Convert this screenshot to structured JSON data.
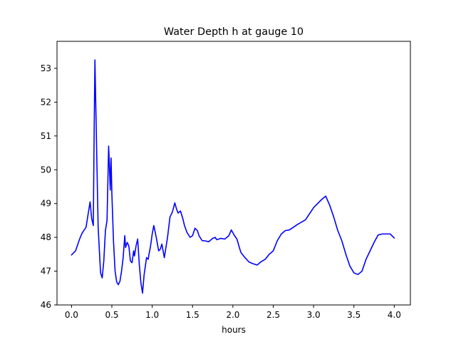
{
  "chart_data": {
    "type": "line",
    "title": "Water Depth h at gauge 10",
    "xlabel": "hours",
    "ylabel": "",
    "xlim": [
      -0.18,
      4.2
    ],
    "ylim": [
      46.0,
      53.8
    ],
    "xticks": [
      0.0,
      0.5,
      1.0,
      1.5,
      2.0,
      2.5,
      3.0,
      3.5,
      4.0
    ],
    "xtick_labels": [
      "0.0",
      "0.5",
      "1.0",
      "1.5",
      "2.0",
      "2.5",
      "3.0",
      "3.5",
      "4.0"
    ],
    "yticks": [
      46,
      47,
      48,
      49,
      50,
      51,
      52,
      53
    ],
    "ytick_labels": [
      "46",
      "47",
      "48",
      "49",
      "50",
      "51",
      "52",
      "53"
    ],
    "grid": false,
    "legend": "none",
    "series": [
      {
        "color": "#0000ff",
        "x": [
          0.0,
          0.05,
          0.1,
          0.13,
          0.18,
          0.21,
          0.23,
          0.25,
          0.27,
          0.28,
          0.29,
          0.3,
          0.33,
          0.36,
          0.38,
          0.4,
          0.42,
          0.44,
          0.46,
          0.47,
          0.48,
          0.49,
          0.5,
          0.52,
          0.54,
          0.56,
          0.58,
          0.6,
          0.62,
          0.64,
          0.66,
          0.67,
          0.69,
          0.71,
          0.73,
          0.75,
          0.77,
          0.78,
          0.8,
          0.82,
          0.84,
          0.86,
          0.88,
          0.9,
          0.93,
          0.95,
          0.96,
          0.98,
          1.0,
          1.02,
          1.05,
          1.08,
          1.1,
          1.12,
          1.15,
          1.17,
          1.19,
          1.2,
          1.22,
          1.25,
          1.28,
          1.3,
          1.32,
          1.35,
          1.38,
          1.4,
          1.43,
          1.47,
          1.5,
          1.53,
          1.56,
          1.58,
          1.62,
          1.65,
          1.7,
          1.75,
          1.78,
          1.8,
          1.85,
          1.9,
          1.95,
          1.98,
          2.02,
          2.05,
          2.08,
          2.1,
          2.15,
          2.2,
          2.25,
          2.3,
          2.35,
          2.4,
          2.45,
          2.5,
          2.55,
          2.6,
          2.65,
          2.7,
          2.75,
          2.8,
          2.85,
          2.9,
          2.95,
          3.0,
          3.05,
          3.1,
          3.15,
          3.2,
          3.25,
          3.3,
          3.35,
          3.4,
          3.45,
          3.5,
          3.55,
          3.6,
          3.65,
          3.7,
          3.75,
          3.8,
          3.85,
          3.9,
          3.95,
          4.0
        ],
        "y": [
          47.48,
          47.6,
          47.95,
          48.12,
          48.3,
          48.75,
          49.05,
          48.55,
          48.35,
          51.0,
          53.25,
          52.0,
          48.3,
          46.95,
          46.8,
          47.3,
          48.2,
          48.5,
          50.7,
          50.1,
          49.4,
          50.35,
          49.3,
          47.9,
          47.0,
          46.68,
          46.6,
          46.7,
          47.0,
          47.4,
          48.05,
          47.7,
          47.85,
          47.75,
          47.3,
          47.25,
          47.6,
          47.45,
          47.75,
          47.95,
          47.2,
          46.65,
          46.35,
          46.9,
          47.4,
          47.35,
          47.5,
          47.75,
          48.1,
          48.35,
          48.0,
          47.6,
          47.65,
          47.8,
          47.4,
          47.7,
          48.0,
          48.2,
          48.6,
          48.75,
          49.02,
          48.85,
          48.72,
          48.78,
          48.55,
          48.35,
          48.15,
          48.0,
          48.05,
          48.27,
          48.2,
          48.05,
          47.9,
          47.9,
          47.87,
          47.97,
          48.0,
          47.93,
          47.97,
          47.95,
          48.05,
          48.22,
          48.05,
          47.95,
          47.7,
          47.55,
          47.4,
          47.27,
          47.22,
          47.18,
          47.28,
          47.35,
          47.5,
          47.6,
          47.9,
          48.1,
          48.2,
          48.22,
          48.3,
          48.38,
          48.45,
          48.52,
          48.7,
          48.88,
          49.0,
          49.12,
          49.22,
          48.95,
          48.6,
          48.2,
          47.9,
          47.5,
          47.15,
          46.95,
          46.9,
          47.0,
          47.35,
          47.6,
          47.85,
          48.07,
          48.1,
          48.1,
          48.1,
          47.98
        ]
      }
    ]
  }
}
